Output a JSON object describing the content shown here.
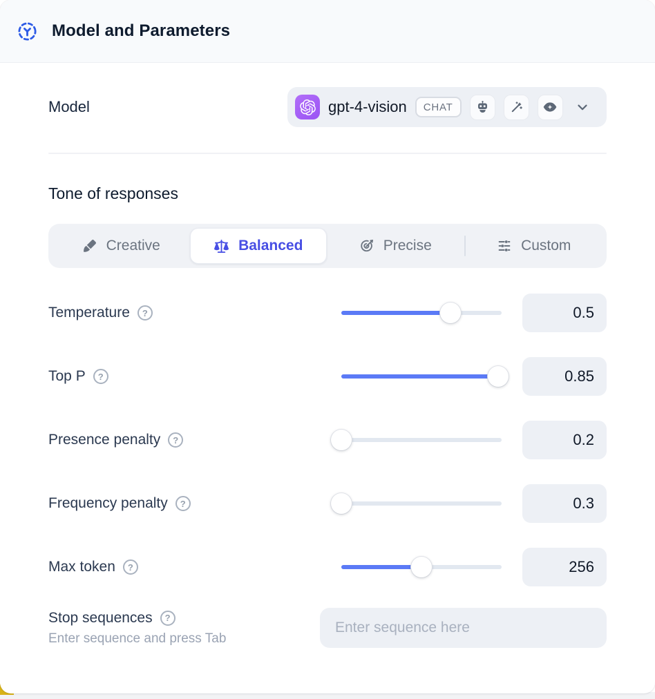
{
  "header": {
    "title": "Model and Parameters"
  },
  "model": {
    "label": "Model",
    "name": "gpt-4-vision",
    "type_badge": "CHAT",
    "capabilities": [
      "assistant",
      "wand-sparkles",
      "vision"
    ]
  },
  "tone": {
    "heading": "Tone of responses",
    "options": [
      {
        "label": "Creative",
        "icon": "paintbrush-icon",
        "selected": false
      },
      {
        "label": "Balanced",
        "icon": "scales-icon",
        "selected": true
      },
      {
        "label": "Precise",
        "icon": "target-icon",
        "selected": false
      },
      {
        "label": "Custom",
        "icon": "sliders-icon",
        "selected": false
      }
    ]
  },
  "parameters": [
    {
      "label": "Temperature",
      "value": "0.5",
      "fill_pct": 68
    },
    {
      "label": "Top P",
      "value": "0.85",
      "fill_pct": 98
    },
    {
      "label": "Presence penalty",
      "value": "0.2",
      "fill_pct": 0
    },
    {
      "label": "Frequency penalty",
      "value": "0.3",
      "fill_pct": 0
    },
    {
      "label": "Max token",
      "value": "256",
      "fill_pct": 50
    }
  ],
  "stop_sequences": {
    "label": "Stop sequences",
    "helper": "Enter sequence and press Tab",
    "placeholder": "Enter sequence here"
  },
  "glyphs": {
    "help": "?"
  },
  "colors": {
    "accent_indigo": "#474ee4",
    "slider_blue": "#5b7af6",
    "avatar_purple": "#a55ff6",
    "header_icon_blue": "#2e5be6",
    "header_bg": "#f8fafc",
    "field_bg": "#edf0f5"
  }
}
